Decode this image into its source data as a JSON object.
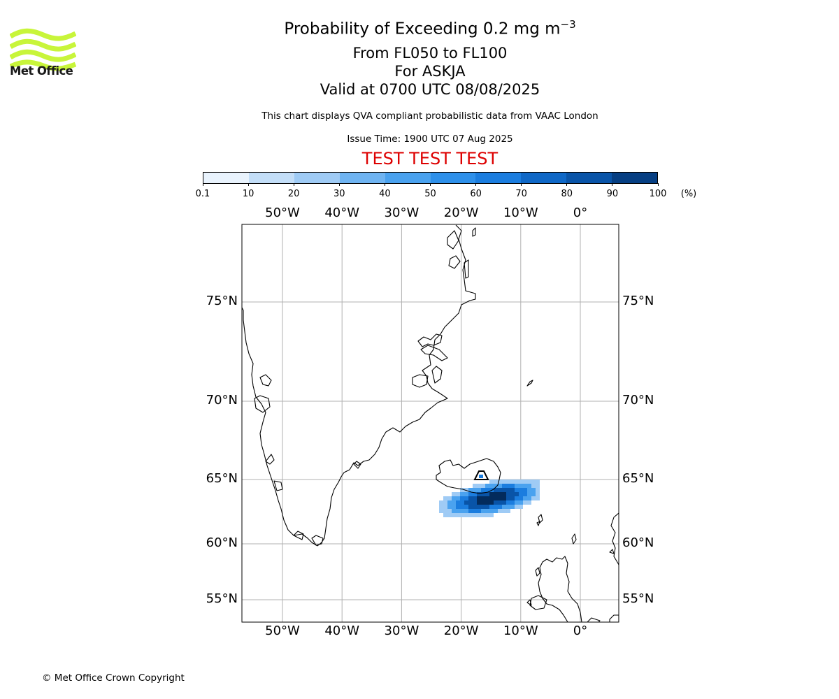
{
  "header": {
    "title_main": "Probability of Exceeding 0.2 mg m",
    "title_superscript": "−3",
    "flight_levels": "From FL050 to FL100",
    "volcano": "For ASKJA",
    "valid_time": "Valid at 0700 UTC 08/08/2025",
    "description": "This chart displays QVA compliant probabilistic data from VAAC London",
    "issue_time": "Issue Time: 1900 UTC 07 Aug 2025",
    "test_banner": "TEST TEST TEST"
  },
  "logo": {
    "text": "Met Office",
    "icon": "met-office-wave-logo",
    "color": "#c8f53a"
  },
  "colorbar": {
    "tick_labels": [
      "0.1",
      "10",
      "20",
      "30",
      "40",
      "50",
      "60",
      "70",
      "80",
      "90",
      "100"
    ],
    "unit": "(%)",
    "colors": [
      "#e9f3fd",
      "#c3def8",
      "#9fcbf5",
      "#6fb4f2",
      "#4aa2ef",
      "#2e90ea",
      "#1b7ddf",
      "#0f68c7",
      "#0954a8",
      "#063f83",
      "#032b5c"
    ]
  },
  "map": {
    "lon_labels": [
      "50°W",
      "40°W",
      "30°W",
      "20°W",
      "10°W",
      "0°"
    ],
    "lat_labels": [
      "75°N",
      "70°N",
      "65°N",
      "60°N",
      "55°N"
    ],
    "lon_values": [
      -50,
      -40,
      -30,
      -20,
      -10,
      0
    ],
    "lat_values": [
      75,
      70,
      65,
      60,
      55
    ],
    "gridline_color": "#b0b0b0",
    "coastline_color": "#000000",
    "volcano_marker": "volcano-triangle-icon",
    "plume_levels_percent": {
      "core": 95,
      "inner": 75,
      "middle": 55,
      "outer": 35,
      "edge": 15
    }
  },
  "footer": {
    "copyright": "© Met Office Crown Copyright"
  }
}
